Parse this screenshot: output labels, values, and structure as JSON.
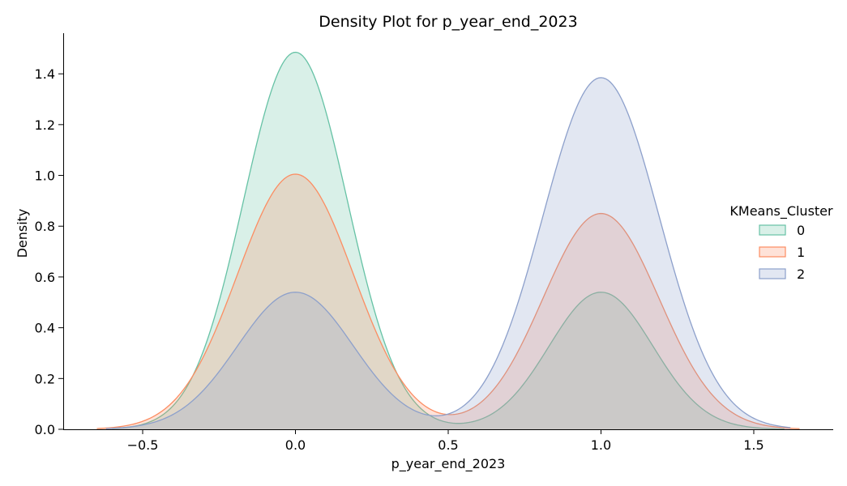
{
  "chart_data": {
    "type": "area",
    "title": "Density Plot for p_year_end_2023",
    "xlabel": "p_year_end_2023",
    "ylabel": "Density",
    "xlim": [
      -0.76,
      1.76
    ],
    "ylim": [
      0,
      1.56
    ],
    "xticks": [
      -0.5,
      0.0,
      0.5,
      1.0,
      1.5
    ],
    "xtick_labels": [
      "−0.5",
      "0.0",
      "0.5",
      "1.0",
      "1.5"
    ],
    "yticks": [
      0.0,
      0.2,
      0.4,
      0.6,
      0.8,
      1.0,
      1.2,
      1.4
    ],
    "ytick_labels": [
      "0.0",
      "0.2",
      "0.4",
      "0.6",
      "0.8",
      "1.0",
      "1.2",
      "1.4"
    ],
    "grid": false,
    "legend": {
      "title": "KMeans_Cluster",
      "placement": "center-right",
      "entries": [
        "0",
        "1",
        "2"
      ]
    },
    "series": [
      {
        "name": "0",
        "color": "#66c2a5",
        "fill": "rgba(102,194,165,0.25)",
        "x_range": [
          -0.6,
          1.6
        ],
        "peaks": [
          {
            "mean": 0.0,
            "height": 1.485,
            "sd": 0.17
          },
          {
            "mean": 1.0,
            "height": 0.54,
            "sd": 0.17
          }
        ]
      },
      {
        "name": "1",
        "color": "#fc8d62",
        "fill": "rgba(252,141,98,0.25)",
        "x_range": [
          -0.65,
          1.65
        ],
        "peaks": [
          {
            "mean": 0.0,
            "height": 1.005,
            "sd": 0.19
          },
          {
            "mean": 1.0,
            "height": 0.85,
            "sd": 0.19
          }
        ]
      },
      {
        "name": "2",
        "color": "#8da0cb",
        "fill": "rgba(141,160,203,0.25)",
        "x_range": [
          -0.62,
          1.62
        ],
        "peaks": [
          {
            "mean": 0.0,
            "height": 0.54,
            "sd": 0.19
          },
          {
            "mean": 1.0,
            "height": 1.385,
            "sd": 0.19
          }
        ]
      }
    ]
  }
}
